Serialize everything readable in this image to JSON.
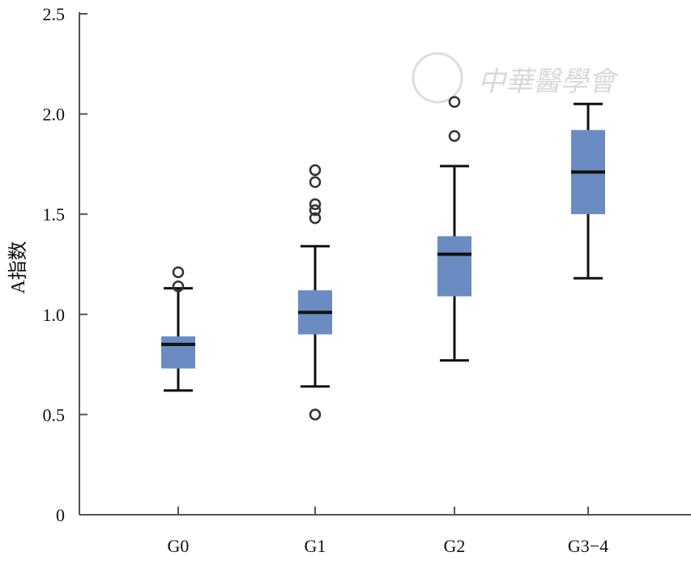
{
  "chart_data": {
    "type": "box",
    "title": "",
    "xlabel": "",
    "ylabel": "A指数",
    "ylim": [
      0,
      2.5
    ],
    "yticks": [
      0,
      0.5,
      1.0,
      1.5,
      2.0,
      2.5
    ],
    "ytick_labels": [
      "0",
      "0.5",
      "1.0",
      "1.5",
      "2.0",
      "2.5"
    ],
    "categories": [
      "G0",
      "G1",
      "G2",
      "G3−4"
    ],
    "boxes": [
      {
        "name": "G0",
        "whisker_low": 0.62,
        "q1": 0.73,
        "median": 0.85,
        "q3": 0.89,
        "whisker_high": 1.13,
        "outliers": [
          1.21,
          1.14
        ]
      },
      {
        "name": "G1",
        "whisker_low": 0.64,
        "q1": 0.9,
        "median": 1.01,
        "q3": 1.12,
        "whisker_high": 1.34,
        "outliers": [
          1.72,
          1.66,
          1.55,
          1.52,
          1.48,
          0.5
        ]
      },
      {
        "name": "G2",
        "whisker_low": 0.77,
        "q1": 1.09,
        "median": 1.3,
        "q3": 1.39,
        "whisker_high": 1.74,
        "outliers": [
          2.06,
          1.89
        ]
      },
      {
        "name": "G3−4",
        "whisker_low": 1.18,
        "q1": 1.5,
        "median": 1.71,
        "q3": 1.92,
        "whisker_high": 2.05,
        "outliers": []
      }
    ],
    "colors": {
      "box": "#6a8cc2",
      "line": "#111111",
      "axis": "#555555"
    },
    "grid": false,
    "legend": "none"
  },
  "watermark": "中华医学会"
}
